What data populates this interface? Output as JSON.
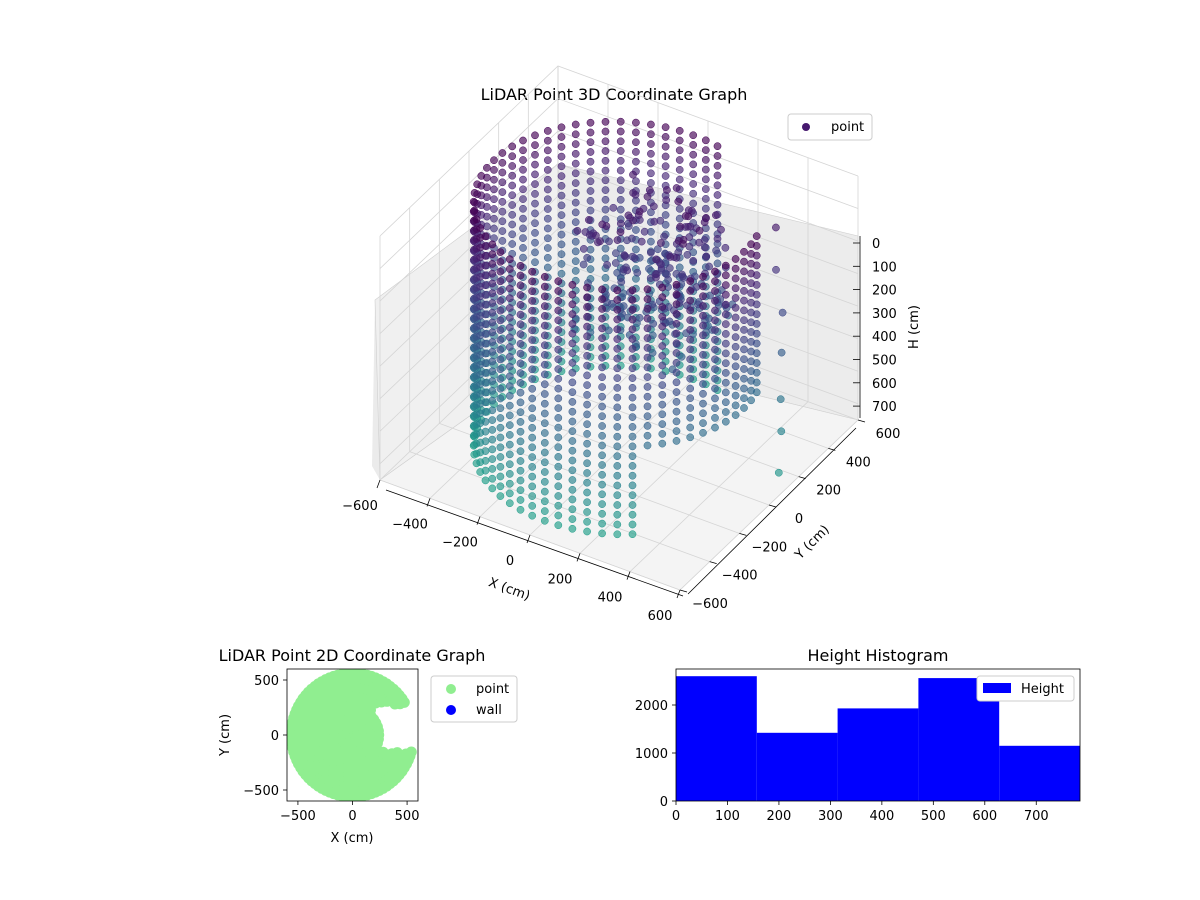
{
  "chart_data": [
    {
      "type": "scatter",
      "projection": "3d",
      "title": "LiDAR Point 3D Coordinate Graph",
      "xlabel": "X (cm)",
      "ylabel": "Y (cm)",
      "zlabel": "H (cm)",
      "xlim": [
        -600,
        600
      ],
      "ylim": [
        -600,
        600
      ],
      "zlim": [
        750,
        0
      ],
      "z_axis_inverted": true,
      "x_ticks": [
        "−600",
        "−400",
        "−200",
        "0",
        "200",
        "400",
        "600"
      ],
      "y_ticks": [
        "−600",
        "−400",
        "−200",
        "0",
        "200",
        "400",
        "600"
      ],
      "z_ticks": [
        "0",
        "100",
        "200",
        "300",
        "400",
        "500",
        "600",
        "700"
      ],
      "grid": true,
      "legend": {
        "placement": "top-right",
        "entries": [
          {
            "label": "point",
            "color": "#46196e"
          }
        ]
      },
      "colormap": "viridis (purple at top H≈0 → teal at bottom)",
      "description_points": "cylindrical wall of points, radius ≈ 500 cm, H 0–750 cm, with a scattered cluster near center-top and stray points toward +X/+Y"
    },
    {
      "type": "scatter",
      "title": "LiDAR Point 2D Coordinate Graph",
      "xlabel": "X (cm)",
      "ylabel": "Y (cm)",
      "xlim": [
        -600,
        600
      ],
      "ylim": [
        -600,
        600
      ],
      "x_ticks": [
        "−500",
        "0",
        "500"
      ],
      "y_ticks": [
        "−500",
        "0",
        "500"
      ],
      "series": [
        {
          "name": "point",
          "color": "#90ee90"
        },
        {
          "name": "wall",
          "color": "#0000ff"
        }
      ],
      "legend": {
        "placement": "outside-right"
      }
    },
    {
      "type": "bar",
      "title": "Height Histogram",
      "bin_edges": [
        0,
        157,
        314,
        471,
        628,
        785
      ],
      "values": [
        2600,
        1420,
        1930,
        2560,
        1150
      ],
      "xlim": [
        0,
        785
      ],
      "ylim": [
        0,
        2750
      ],
      "x_ticks": [
        "0",
        "100",
        "200",
        "300",
        "400",
        "500",
        "600",
        "700"
      ],
      "y_ticks": [
        "0",
        "1000",
        "2000"
      ],
      "series": [
        {
          "name": "Height",
          "color": "#0000ff"
        }
      ],
      "legend": {
        "placement": "top-right"
      },
      "xlabel": "",
      "ylabel": ""
    }
  ]
}
